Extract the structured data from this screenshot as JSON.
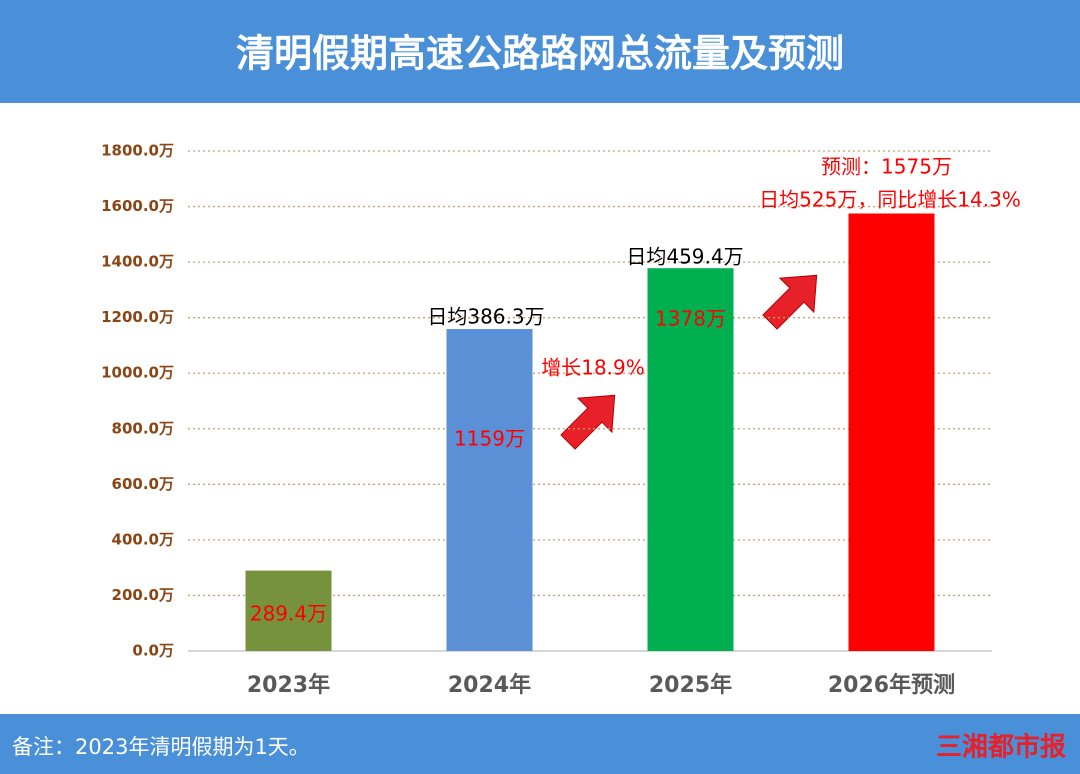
{
  "chart_data": {
    "type": "bar",
    "title": "清明假期高速公路路网总流量及预测",
    "categories": [
      "2023年",
      "2024年",
      "2025年",
      "2026年预测"
    ],
    "values": [
      289.4,
      1159,
      1378,
      1575
    ],
    "value_labels": [
      "289.4万",
      "1159万",
      "1378万",
      "预测：1575万"
    ],
    "colors": [
      "#76923c",
      "#5b8fd6",
      "#00b050",
      "#ff0000"
    ],
    "ylim": [
      0,
      1800
    ],
    "yticks": [
      {
        "value": 0,
        "label": "0.0万"
      },
      {
        "value": 200,
        "label": "200.0万"
      },
      {
        "value": 400,
        "label": "400.0万"
      },
      {
        "value": 600,
        "label": "600.0万"
      },
      {
        "value": 800,
        "label": "800.0万"
      },
      {
        "value": 1000,
        "label": "1000.0万"
      },
      {
        "value": 1200,
        "label": "1200.0万"
      },
      {
        "value": 1400,
        "label": "1400.0万"
      },
      {
        "value": 1600,
        "label": "1600.0万"
      },
      {
        "value": 1800,
        "label": "1800.0万"
      }
    ],
    "grid": true,
    "annotations": [
      "日均386.3万",
      "日均459.4万",
      "增长18.9%",
      "日均525万，同比增长14.3%"
    ],
    "note": "备注：2023年清明假期为1天。",
    "source": "三湘都市报"
  }
}
